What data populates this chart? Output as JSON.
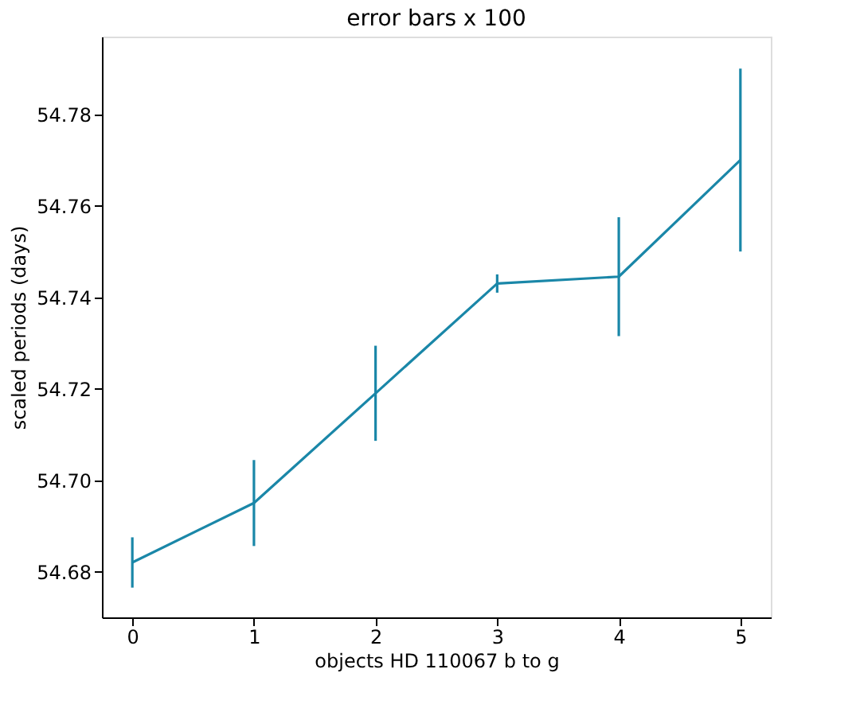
{
  "chart_data": {
    "type": "line",
    "title": "error bars x 100",
    "xlabel": "objects HD 110067 b to g",
    "ylabel": "scaled periods (days)",
    "x": [
      0,
      1,
      2,
      3,
      4,
      5
    ],
    "series": [
      {
        "color": "#1a87a8",
        "values": [
          54.682,
          54.695,
          54.719,
          54.743,
          54.7445,
          54.77
        ],
        "errors": [
          0.0055,
          0.0094,
          0.0104,
          0.002,
          0.013,
          0.02
        ]
      }
    ],
    "xlim": [
      -0.25,
      5.25
    ],
    "xticks": [
      0,
      1,
      2,
      3,
      4,
      5
    ],
    "ylim": [
      54.67,
      54.797
    ],
    "yticks": [
      54.68,
      {
        "value": 54.7,
        "label": "54.70"
      },
      54.72,
      54.74,
      54.76,
      54.78
    ],
    "grid": false,
    "marker": "none",
    "line_style": "solid"
  }
}
